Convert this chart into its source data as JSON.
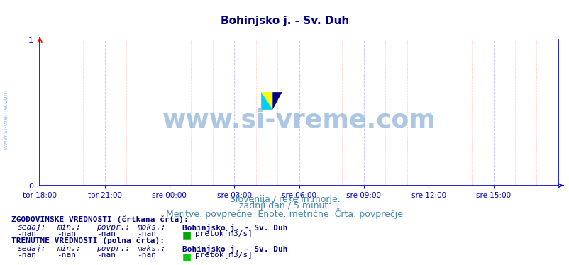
{
  "title": "Bohinjsko j. - Sv. Duh",
  "title_color": "#000080",
  "title_fontsize": 11,
  "bg_color": "#ffffff",
  "plot_bg_color": "#ffffff",
  "grid_color_major": "#c8c8ff",
  "grid_color_minor": "#ffcccc",
  "axis_color": "#0000cc",
  "tick_color": "#0000cc",
  "tick_label_color": "#0000cc",
  "xlabel_ticks": [
    "tor 18:00",
    "tor 21:00",
    "sre 00:00",
    "sre 03:00",
    "sre 06:00",
    "sre 09:00",
    "sre 12:00",
    "sre 15:00"
  ],
  "yticks": [
    0,
    1
  ],
  "ylim": [
    0,
    1
  ],
  "xlim": [
    0,
    288
  ],
  "watermark_text": "www.si-vreme.com",
  "watermark_color": "#6699cc",
  "watermark_alpha": 0.5,
  "subtitle1": "Slovenija / reke in morje.",
  "subtitle2": "zadnji dan / 5 minut.",
  "subtitle3": "Meritve: povprečne  Enote: metrične  Črta: povprečje",
  "subtitle_color": "#4488aa",
  "subtitle_fontsize": 9,
  "legend_section1_title": "ZGODOVINSKE VREDNOSTI (črtkana črta):",
  "legend_section2_title": "TRENUTNE VREDNOSTI (polna črta):",
  "legend_headers": [
    "sedaj:",
    "min.:",
    "povpr.:",
    "maks.:"
  ],
  "legend_station": "Bohinjsko j. - Sv. Duh",
  "legend_values": [
    "-nan",
    "-nan",
    "-nan",
    "-nan"
  ],
  "legend_unit": "pretok[m3/s]",
  "legend_color_hist": "#00aa00",
  "legend_color_curr": "#00cc00",
  "legend_text_color": "#000080",
  "legend_title_color": "#000080",
  "legend_fontsize": 8,
  "left_label": "www.si-vreme.com",
  "left_label_color": "#88aacc",
  "watermark_logo_colors": [
    "#ffff00",
    "#00ccff",
    "#000080"
  ],
  "n_points": 288
}
